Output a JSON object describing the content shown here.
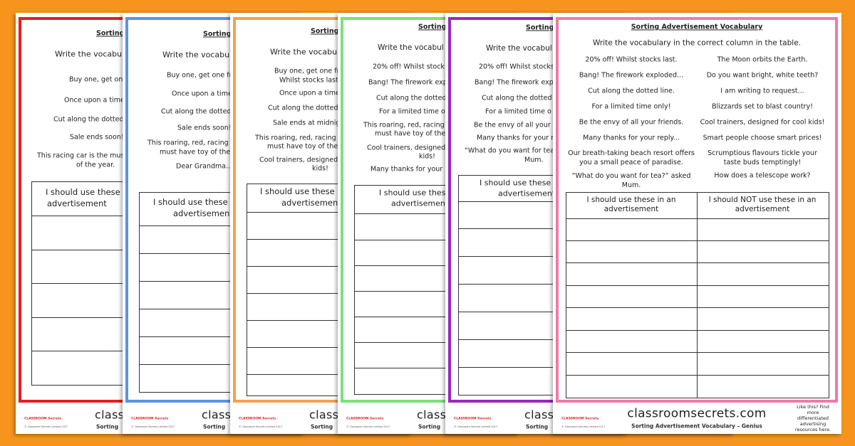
{
  "logo": "CLASSROOM Secrets",
  "copyright": "© Classroom Secrets Limited 2017",
  "sheets": [
    {
      "title": "Sorting",
      "instruction": "Write the vocabul",
      "items": [
        "Buy one, get one fr",
        "Once upon a time",
        "Cut along the dotted",
        "Sale ends soon!",
        "This racing car is the mus",
        "of the year."
      ],
      "table_header": [
        "I should use these",
        "advertisement"
      ],
      "footer_brand": "classroom",
      "footer_title": "Sorting"
    },
    {
      "title": "Sorting",
      "instruction": "Write the vocabul",
      "items": [
        "Buy one, get one fr",
        "Once upon a time",
        "Cut along the dotted",
        "Sale ends soon!",
        "This roaring, red, racing",
        "must have toy of the",
        "Dear Grandma..."
      ],
      "table_header": [
        "I should use these",
        "advertisement"
      ],
      "footer_brand": "classroom",
      "footer_title": "Sorting"
    },
    {
      "title": "Sorting",
      "instruction": "Write the vocabul",
      "items": [
        "Buy one, get one fr",
        "Whilst stocks last",
        "Once upon a time",
        "Cut along the dotted",
        "Sale ends at midnig",
        "This roaring, red, racing",
        "must have toy of the",
        "Cool trainers, designed",
        "kids!"
      ],
      "table_header": [
        "I should use these",
        "advertisement"
      ],
      "footer_brand": "classroom",
      "footer_title": "Sorting"
    },
    {
      "title": "Sorting",
      "instruction": "Write the vocabul",
      "items": [
        "20% off! Whilst stock",
        "Bang! The firework exp",
        "Cut along the dotted",
        "For a limited time o",
        "This roaring, red, racing",
        "must have toy of the",
        "Cool trainers, designed",
        "kids!",
        "Many thanks for your"
      ],
      "table_header": [
        "I should use these",
        "advertisement"
      ],
      "footer_brand": "classroom",
      "footer_title": "Sorting"
    },
    {
      "title": "Sorting",
      "instruction": "Write the vocabul",
      "items": [
        "20% off! Whilst stocks",
        "Bang! The firework exp",
        "Cut along the dotted",
        "For a limited time o",
        "Be the envy of all your",
        "Many thanks for your r",
        "“What do you want for tea",
        "Mum."
      ],
      "table_header": [
        "I should use these i",
        "advertisement"
      ],
      "footer_brand": "classroom",
      "footer_title": "Sorting"
    }
  ],
  "main_sheet": {
    "title": "Sorting Advertisement Vocabulary",
    "instruction": "Write the vocabulary in the correct column in the table.",
    "items_left": [
      "20% off! Whilst stocks last.",
      "Bang! The firework exploded...",
      "Cut along the dotted line.",
      "For a limited time only!",
      "Be the envy of all your friends.",
      "Many thanks for your reply...",
      "Our breath-taking beach resort offers you a small peace of paradise.",
      "“What do you want for tea?” asked Mum."
    ],
    "items_right": [
      "The Moon orbits the Earth.",
      "Do you want bright, white teeth?",
      "I am writing to request...",
      "Blizzards set to blast country!",
      "Cool trainers, designed for cool kids!",
      "Smart people choose smart prices!",
      "Scrumptious flavours tickle your taste buds temptingly!",
      "How does a telescope work?"
    ],
    "table_header": [
      "I should use these in an advertisement",
      "I should NOT use these in an advertisement"
    ],
    "footer_brand": "classroomsecrets.com",
    "footer_title": "Sorting Advertisement Vocabulary – Genius",
    "side_note": "Like this? Find more differentiated advertising resources here."
  }
}
